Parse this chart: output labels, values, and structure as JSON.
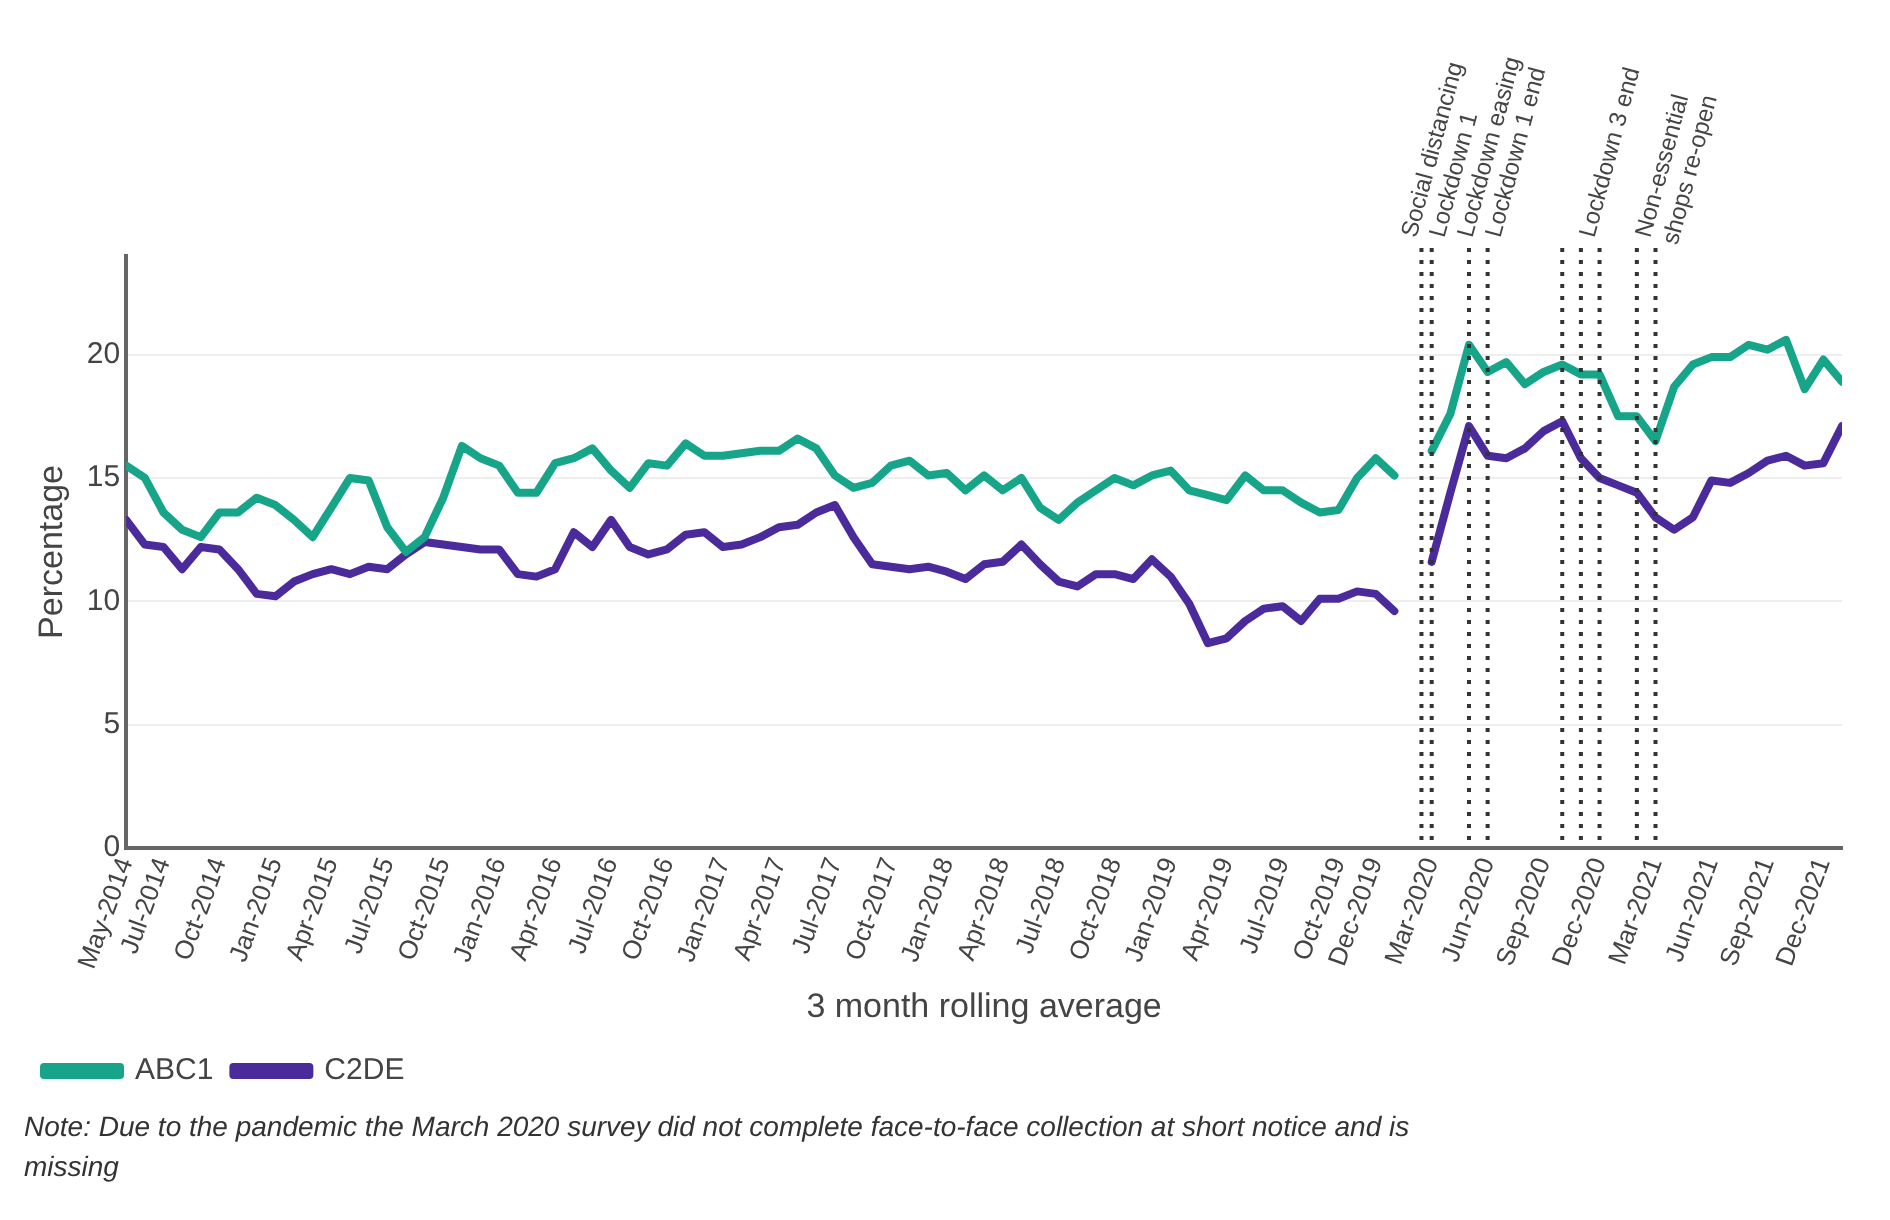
{
  "chart_data": {
    "type": "line",
    "xlabel": "3 month rolling average",
    "ylabel": "Percentage",
    "x": [
      "2014-05",
      "2014-06",
      "2014-07",
      "2014-08",
      "2014-09",
      "2014-10",
      "2014-11",
      "2014-12",
      "2015-01",
      "2015-02",
      "2015-03",
      "2015-04",
      "2015-05",
      "2015-06",
      "2015-07",
      "2015-08",
      "2015-09",
      "2015-10",
      "2015-11",
      "2015-12",
      "2016-01",
      "2016-02",
      "2016-03",
      "2016-04",
      "2016-05",
      "2016-06",
      "2016-07",
      "2016-08",
      "2016-09",
      "2016-10",
      "2016-11",
      "2016-12",
      "2017-01",
      "2017-02",
      "2017-03",
      "2017-04",
      "2017-05",
      "2017-06",
      "2017-07",
      "2017-08",
      "2017-09",
      "2017-10",
      "2017-11",
      "2017-12",
      "2018-01",
      "2018-02",
      "2018-03",
      "2018-04",
      "2018-05",
      "2018-06",
      "2018-07",
      "2018-08",
      "2018-09",
      "2018-10",
      "2018-11",
      "2018-12",
      "2019-01",
      "2019-02",
      "2019-03",
      "2019-04",
      "2019-05",
      "2019-06",
      "2019-07",
      "2019-08",
      "2019-09",
      "2019-10",
      "2019-11",
      "2019-12",
      "2020-01",
      "2020-02",
      "2020-03",
      "2020-04",
      "2020-05",
      "2020-06",
      "2020-07",
      "2020-08",
      "2020-09",
      "2020-10",
      "2020-11",
      "2020-12",
      "2021-01",
      "2021-02",
      "2021-03",
      "2021-04",
      "2021-05",
      "2021-06",
      "2021-07",
      "2021-08",
      "2021-09",
      "2021-10",
      "2021-11",
      "2021-12",
      "2022-01"
    ],
    "series": [
      {
        "name": "ABC1",
        "color": "#17a58a",
        "values": [
          15.5,
          15.0,
          13.6,
          12.9,
          12.6,
          13.6,
          13.6,
          14.2,
          13.9,
          13.3,
          12.6,
          13.8,
          15.0,
          14.9,
          13.0,
          12.0,
          12.6,
          14.2,
          16.3,
          15.8,
          15.5,
          14.4,
          14.4,
          15.6,
          15.8,
          16.2,
          15.3,
          14.6,
          15.6,
          15.5,
          16.4,
          15.9,
          15.9,
          16.0,
          16.1,
          16.1,
          16.6,
          16.2,
          15.1,
          14.6,
          14.8,
          15.5,
          15.7,
          15.1,
          15.2,
          14.5,
          15.1,
          14.5,
          15.0,
          13.8,
          13.3,
          14.0,
          14.5,
          15.0,
          14.7,
          15.1,
          15.3,
          14.5,
          14.3,
          14.1,
          15.1,
          14.5,
          14.5,
          14.0,
          13.6,
          13.7,
          15.0,
          15.8,
          15.1,
          null,
          16.1,
          17.6,
          20.4,
          19.3,
          19.7,
          18.8,
          19.3,
          19.6,
          19.2,
          19.2,
          17.5,
          17.5,
          16.5,
          18.7,
          19.6,
          19.9,
          19.9,
          20.4,
          20.2,
          20.6,
          18.6,
          19.8,
          18.9
        ]
      },
      {
        "name": "C2DE",
        "color": "#4b2a9b",
        "values": [
          13.3,
          12.3,
          12.2,
          11.3,
          12.2,
          12.1,
          11.3,
          10.3,
          10.2,
          10.8,
          11.1,
          11.3,
          11.1,
          11.4,
          11.3,
          11.9,
          12.4,
          12.3,
          12.2,
          12.1,
          12.1,
          11.1,
          11.0,
          11.3,
          12.8,
          12.2,
          13.3,
          12.2,
          11.9,
          12.1,
          12.7,
          12.8,
          12.2,
          12.3,
          12.6,
          13.0,
          13.1,
          13.6,
          13.9,
          12.6,
          11.5,
          11.4,
          11.3,
          11.4,
          11.2,
          10.9,
          11.5,
          11.6,
          12.3,
          11.5,
          10.8,
          10.6,
          11.1,
          11.1,
          10.9,
          11.7,
          11.0,
          9.9,
          8.3,
          8.5,
          9.2,
          9.7,
          9.8,
          9.2,
          10.1,
          10.1,
          10.4,
          10.3,
          9.6,
          null,
          11.6,
          14.4,
          17.1,
          15.9,
          15.8,
          16.2,
          16.9,
          17.3,
          15.8,
          15.0,
          14.7,
          14.4,
          13.4,
          12.9,
          13.4,
          14.9,
          14.8,
          15.2,
          15.7,
          15.9,
          15.5,
          15.6,
          17.1
        ]
      }
    ],
    "xlim": [
      "2014-05",
      "2022-01"
    ],
    "xticks": [
      {
        "value": "2014-05",
        "label": "May-2014"
      },
      {
        "value": "2014-07",
        "label": "Jul-2014"
      },
      {
        "value": "2014-10",
        "label": "Oct-2014"
      },
      {
        "value": "2015-01",
        "label": "Jan-2015"
      },
      {
        "value": "2015-04",
        "label": "Apr-2015"
      },
      {
        "value": "2015-07",
        "label": "Jul-2015"
      },
      {
        "value": "2015-10",
        "label": "Oct-2015"
      },
      {
        "value": "2016-01",
        "label": "Jan-2016"
      },
      {
        "value": "2016-04",
        "label": "Apr-2016"
      },
      {
        "value": "2016-07",
        "label": "Jul-2016"
      },
      {
        "value": "2016-10",
        "label": "Oct-2016"
      },
      {
        "value": "2017-01",
        "label": "Jan-2017"
      },
      {
        "value": "2017-04",
        "label": "Apr-2017"
      },
      {
        "value": "2017-07",
        "label": "Jul-2017"
      },
      {
        "value": "2017-10",
        "label": "Oct-2017"
      },
      {
        "value": "2018-01",
        "label": "Jan-2018"
      },
      {
        "value": "2018-04",
        "label": "Apr-2018"
      },
      {
        "value": "2018-07",
        "label": "Jul-2018"
      },
      {
        "value": "2018-10",
        "label": "Oct-2018"
      },
      {
        "value": "2019-01",
        "label": "Jan-2019"
      },
      {
        "value": "2019-04",
        "label": "Apr-2019"
      },
      {
        "value": "2019-07",
        "label": "Jul-2019"
      },
      {
        "value": "2019-10",
        "label": "Oct-2019"
      },
      {
        "value": "2019-12",
        "label": "Dec-2019"
      },
      {
        "value": "2020-03",
        "label": "Mar-2020"
      },
      {
        "value": "2020-06",
        "label": "Jun-2020"
      },
      {
        "value": "2020-09",
        "label": "Sep-2020"
      },
      {
        "value": "2020-12",
        "label": "Dec-2020"
      },
      {
        "value": "2021-03",
        "label": "Mar-2021"
      },
      {
        "value": "2021-06",
        "label": "Jun-2021"
      },
      {
        "value": "2021-09",
        "label": "Sep-2021"
      },
      {
        "value": "2021-12",
        "label": "Dec-2021"
      }
    ],
    "ylim": [
      0,
      24
    ],
    "yticks": [
      0,
      5,
      10,
      15,
      20
    ],
    "grid": "y",
    "legend": "bottom left",
    "line_style": "solid",
    "marker": "none",
    "ref_lines": [
      {
        "axis": "x",
        "value": "2020-02-15",
        "label": "Social distancing",
        "color": "#333333",
        "line_style": "dotted"
      },
      {
        "axis": "x",
        "value": "2020-03",
        "label": "Lockdown 1",
        "color": "#333333",
        "line_style": "dotted"
      },
      {
        "axis": "x",
        "value": "2020-05",
        "label": "Lockdown easing",
        "color": "#333333",
        "line_style": "dotted"
      },
      {
        "axis": "x",
        "value": "2020-06",
        "label": "Lockdown 1 end",
        "color": "#333333",
        "line_style": "dotted"
      },
      {
        "axis": "x",
        "value": "2020-10",
        "label": null,
        "color": "#333333",
        "line_style": "dotted"
      },
      {
        "axis": "x",
        "value": "2020-11",
        "label": null,
        "color": "#333333",
        "line_style": "dotted"
      },
      {
        "axis": "x",
        "value": "2020-12",
        "label": "Lockdown 3 end",
        "color": "#333333",
        "line_style": "dotted"
      },
      {
        "axis": "x",
        "value": "2021-02",
        "label": null,
        "color": "#333333",
        "line_style": "dotted"
      },
      {
        "axis": "x",
        "value": "2021-03",
        "label": "Non-essential shops re-open",
        "color": "#333333",
        "line_style": "dotted"
      }
    ],
    "annotations": [
      "Note: Due to the pandemic the March 2020 survey did not complete face-to-face collection at short notice and is missing"
    ]
  }
}
